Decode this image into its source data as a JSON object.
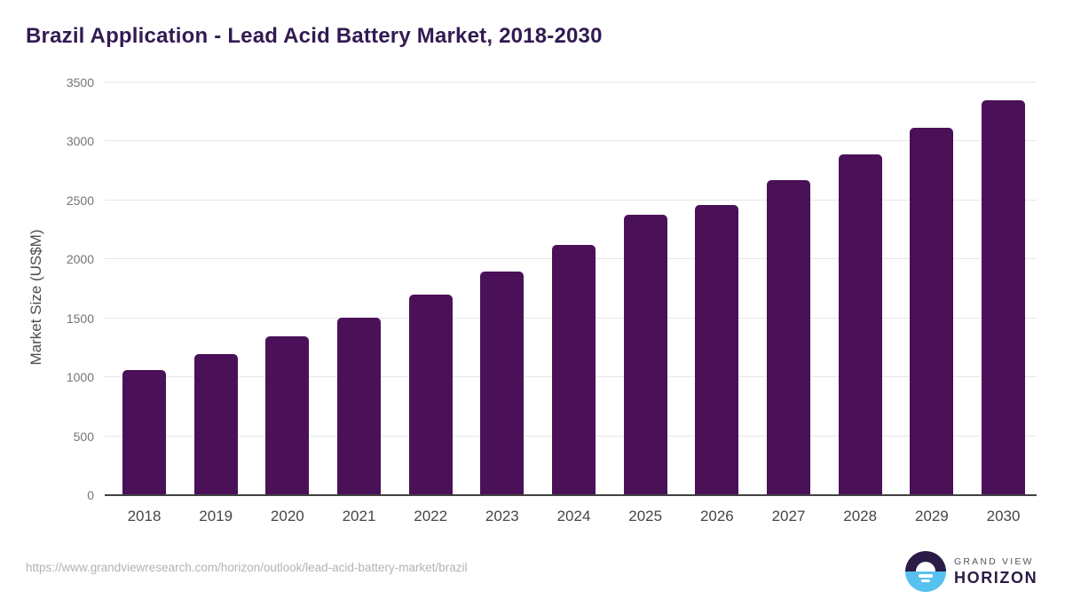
{
  "title": "Brazil Application - Lead Acid Battery Market, 2018-2030",
  "chart_data": {
    "type": "bar",
    "title": "Brazil Application - Lead Acid Battery Market, 2018-2030",
    "categories": [
      "2018",
      "2019",
      "2020",
      "2021",
      "2022",
      "2023",
      "2024",
      "2025",
      "2026",
      "2027",
      "2028",
      "2029",
      "2030"
    ],
    "values": [
      1065,
      1195,
      1350,
      1505,
      1700,
      1895,
      2120,
      2380,
      2465,
      2670,
      2890,
      3115,
      3350
    ],
    "xlabel": "",
    "ylabel": "Market Size (US$M)",
    "ylim": [
      0,
      3500
    ],
    "y_ticks": [
      0,
      500,
      1000,
      1500,
      2000,
      2500,
      3000,
      3500
    ],
    "grid": "horizontal-only",
    "legend": "none",
    "bar_color": "#4a1158"
  },
  "footer": {
    "source_url": "https://www.grandviewresearch.com/horizon/outlook/lead-acid-battery-market/brazil"
  },
  "logo": {
    "line1": "GRAND VIEW",
    "line2": "HORIZON",
    "mark": "horizon-sun-icon"
  },
  "colors": {
    "bar": "#4a1158",
    "title_text": "#311b52",
    "gridline": "#e6e6e6",
    "axis_line": "#424242",
    "y_tick_text": "#757575",
    "x_tick_text": "#464646",
    "url_text": "#b3b3b3",
    "logo_purple": "#2b1b47",
    "logo_blue": "#57c1ef"
  }
}
